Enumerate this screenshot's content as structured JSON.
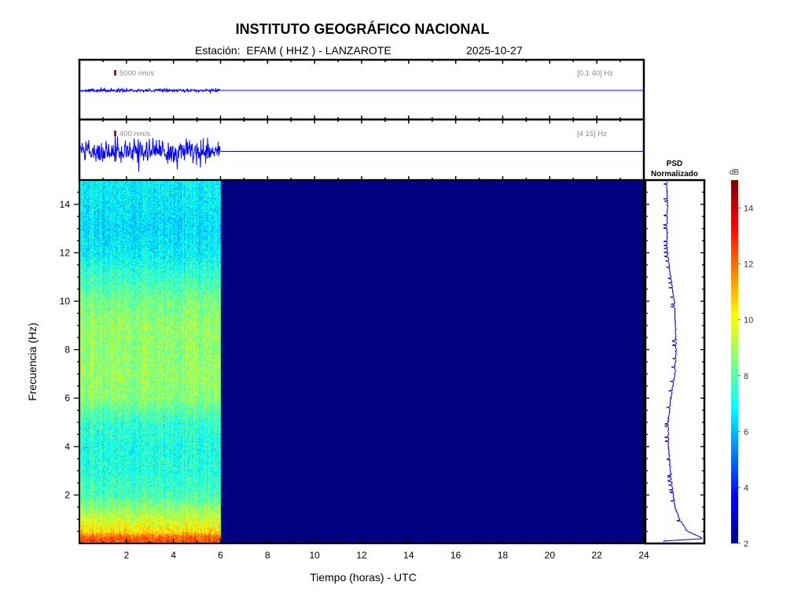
{
  "header": {
    "title": "INSTITUTO GEOGRÁFICO NACIONAL",
    "station_label": "Estación:  EFAM ( HHZ ) - LANZAROTE",
    "date": "2025-10-27"
  },
  "traces": [
    {
      "scale_label": "5000 nm/s",
      "band_label": "[0.1 40] Hz",
      "data_end_hour": 6,
      "relative_amplitude": 0.06,
      "color": "#0000ff",
      "scale_bar_color": "#dd0000"
    },
    {
      "scale_label": "400 nm/s",
      "band_label": "[4 15] Hz",
      "data_end_hour": 6,
      "relative_amplitude": 0.5,
      "color": "#0000ff",
      "scale_bar_color": "#dd0000"
    }
  ],
  "chart_data": [
    {
      "type": "heatmap",
      "title": "",
      "xlabel": "Tiempo (horas) - UTC",
      "ylabel": "Frecuencia  (Hz)",
      "xlim": [
        0,
        24
      ],
      "ylim": [
        0,
        15
      ],
      "xticks": [
        "2",
        "4",
        "6",
        "8",
        "10",
        "12",
        "14",
        "16",
        "18",
        "20",
        "22",
        "24"
      ],
      "yticks": [
        "2",
        "4",
        "6",
        "8",
        "10",
        "12",
        "14"
      ],
      "data_hours": [
        0,
        6
      ],
      "colormap": "jet",
      "no_data_value_db": 2,
      "mean_db_by_frequency": {
        "frequency_hz": [
          0.1,
          0.3,
          0.5,
          1,
          2,
          3,
          4,
          5,
          6,
          7,
          8,
          9,
          10,
          11,
          12,
          13,
          14,
          15
        ],
        "db": [
          12.5,
          12,
          10.5,
          9.5,
          7.8,
          7.3,
          7.2,
          7.5,
          8.6,
          8.8,
          8.7,
          8.8,
          8.4,
          7.6,
          6.8,
          6.5,
          6.7,
          6.8
        ]
      }
    },
    {
      "type": "line",
      "title": "PSD\nNormalizado",
      "title_lines": [
        "PSD",
        "Normalizado"
      ],
      "orientation": "vertical",
      "ylim": [
        0,
        15
      ],
      "frequency_hz": [
        0.1,
        0.2,
        0.5,
        1,
        1.5,
        2,
        3,
        4,
        5,
        6,
        7,
        8,
        9,
        10,
        11,
        12,
        13,
        14,
        15
      ],
      "normalized_psd": [
        0.3,
        1.0,
        0.72,
        0.58,
        0.5,
        0.47,
        0.42,
        0.39,
        0.38,
        0.43,
        0.5,
        0.52,
        0.51,
        0.49,
        0.43,
        0.37,
        0.36,
        0.37,
        0.36
      ]
    },
    {
      "type": "colorbar",
      "label": "dB",
      "range": [
        2,
        15
      ],
      "ticks": [
        "2",
        "4",
        "6",
        "8",
        "10",
        "12",
        "14"
      ]
    }
  ]
}
